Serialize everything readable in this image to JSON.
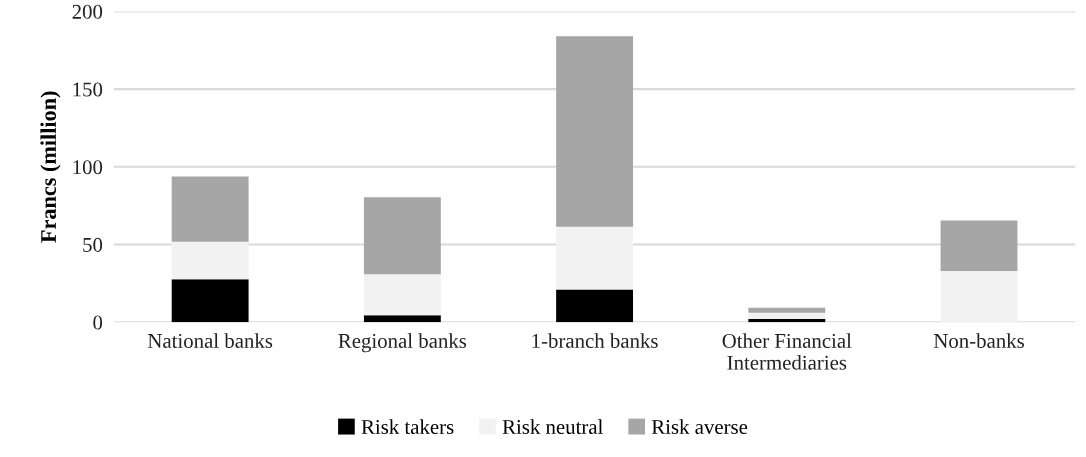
{
  "chart_data": {
    "type": "bar",
    "stacked": true,
    "ylabel": "Francs (million)",
    "categories": [
      "National banks",
      "Regional banks",
      "1-branch banks",
      "Other Financial Intermediaries",
      "Non-banks"
    ],
    "series": [
      {
        "name": "Risk takers",
        "color": "#000000",
        "values": [
          27.7,
          4.4,
          21.1,
          2,
          0
        ]
      },
      {
        "name": "Risk neutral",
        "color": "#f2f2f2",
        "values": [
          24.0,
          26.4,
          40.4,
          4,
          33
        ]
      },
      {
        "name": "Risk averse",
        "color": "#a6a6a6",
        "values": [
          42.0,
          49.6,
          122.5,
          3.3,
          32.4
        ]
      }
    ],
    "ylim": [
      0,
      200
    ],
    "yticks": [
      0,
      50,
      100,
      150,
      200
    ],
    "grid": "y",
    "legend": "bottom"
  }
}
